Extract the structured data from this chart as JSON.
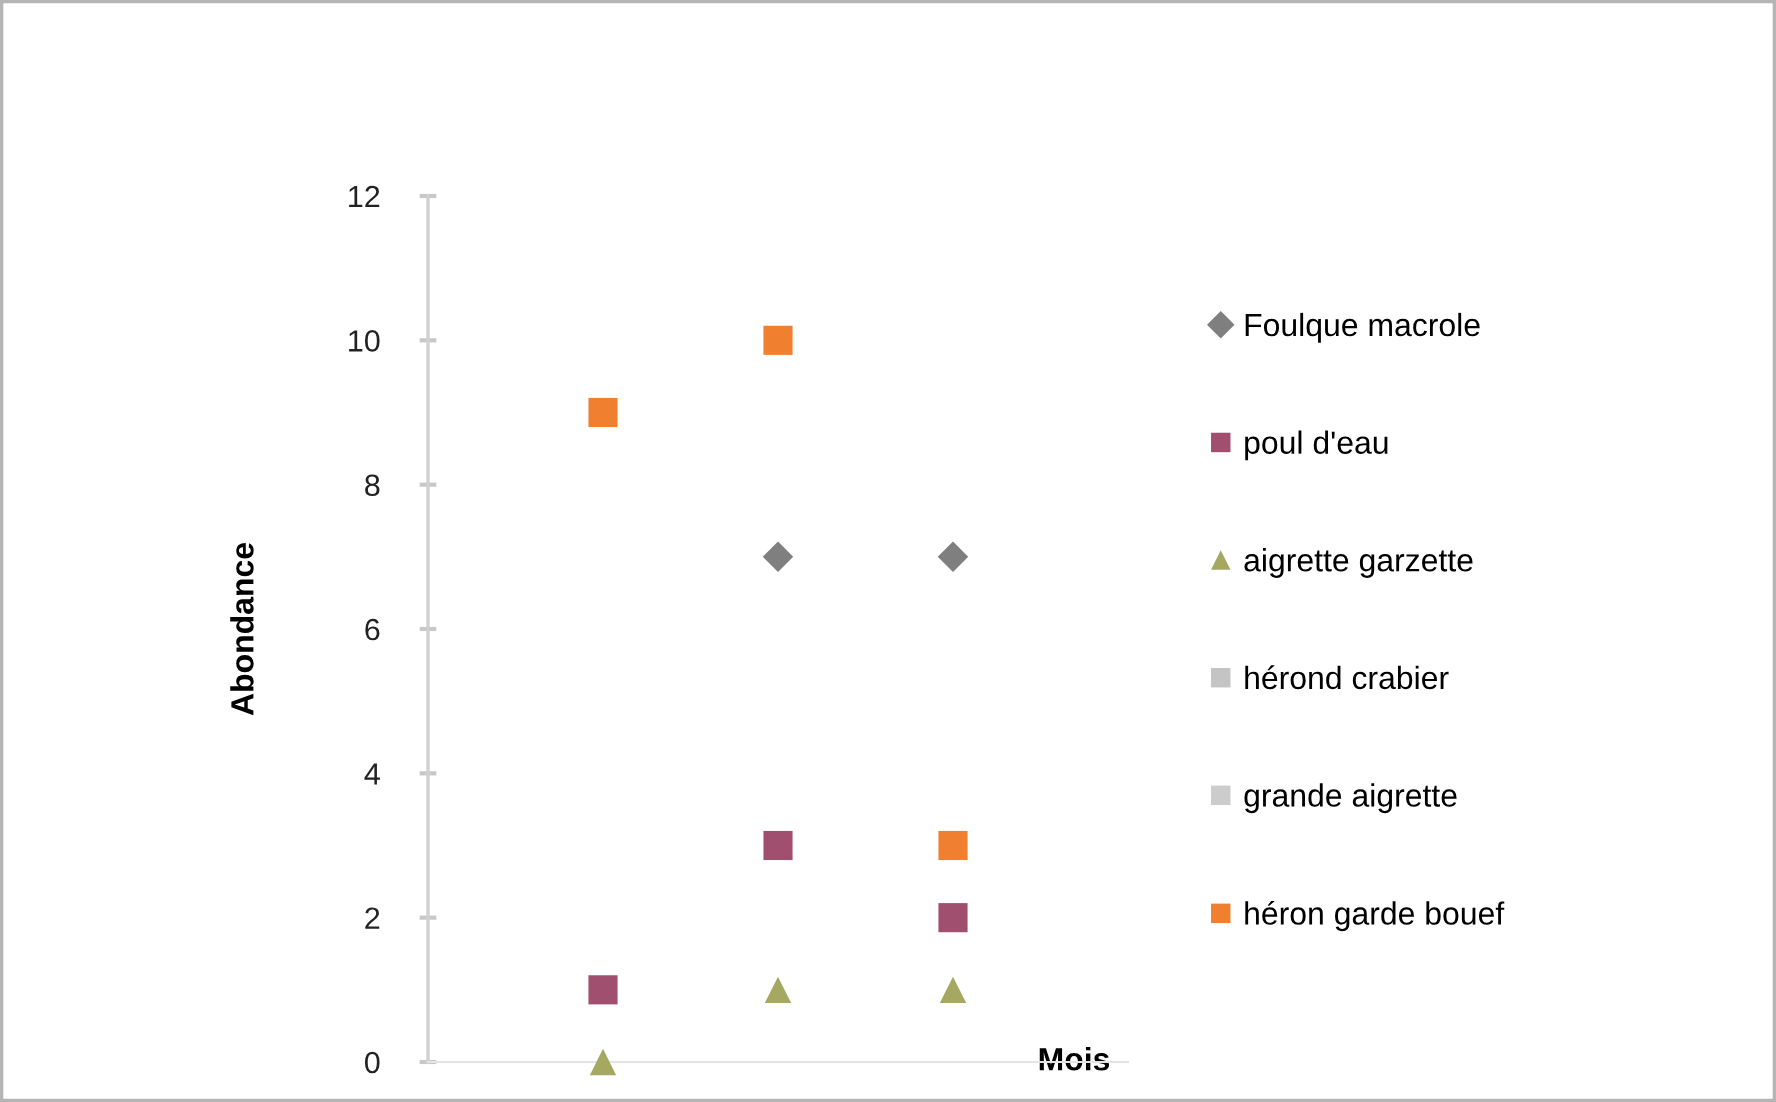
{
  "chart_data": {
    "type": "scatter",
    "xlabel": "Mois",
    "ylabel": "Abondance",
    "categories": [
      null,
      null,
      null
    ],
    "ylim": [
      0,
      12
    ],
    "yticks": [
      0,
      2,
      4,
      6,
      8,
      10,
      12
    ],
    "grid": false,
    "legend": "right",
    "tick_labels": "y",
    "series": [
      {
        "name": "Foulque macrole",
        "color": "#7f7f7f",
        "marker": "diamond",
        "values": [
          null,
          7,
          7
        ]
      },
      {
        "name": "poul d'eau",
        "color": "#a0506e",
        "marker": "square",
        "values": [
          1,
          3,
          2
        ]
      },
      {
        "name": "aigrette garzette",
        "color": "#a4a860",
        "marker": "triangle",
        "values": [
          0,
          1,
          1
        ]
      },
      {
        "name": "hérond crabier",
        "color": "#c4c4c4",
        "marker": "square",
        "values": [
          null,
          null,
          null
        ]
      },
      {
        "name": "grande aigrette",
        "color": "#cccccc",
        "marker": "square",
        "values": [
          null,
          null,
          null
        ]
      },
      {
        "name": "héron garde bouef",
        "color": "#f08030",
        "marker": "square",
        "values": [
          9,
          10,
          3
        ]
      }
    ]
  }
}
